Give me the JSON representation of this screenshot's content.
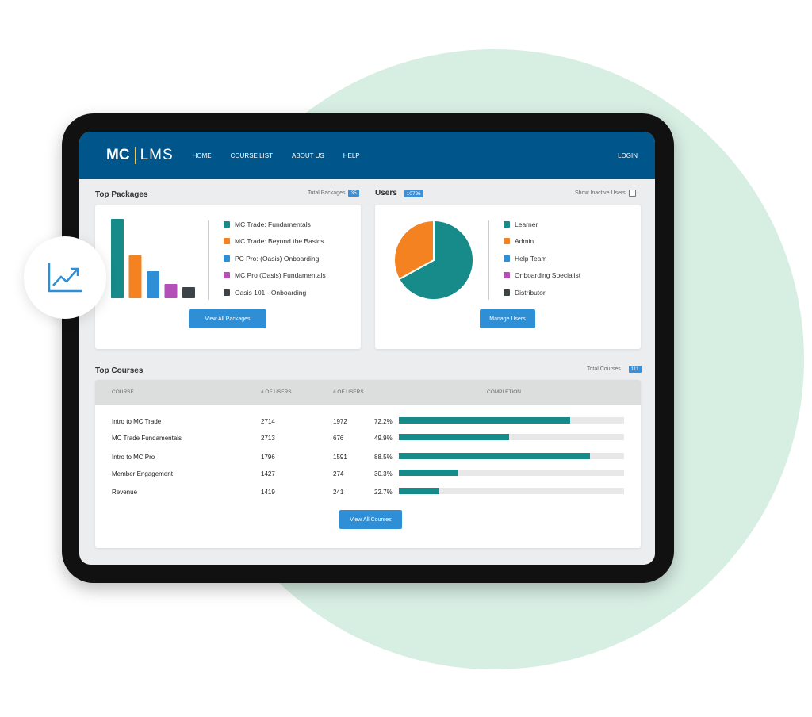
{
  "nav": {
    "logo_left": "MC",
    "logo_right": "LMS",
    "items": [
      "HOME",
      "COURSE LIST",
      "ABOUT US",
      "HELP"
    ],
    "login": "LOGIN"
  },
  "packages": {
    "title": "Top Packages",
    "total_label": "Total Packages",
    "total": "35",
    "button": "View All Packages",
    "chart_data": {
      "type": "bar",
      "categories": [
        "MC Trade: Fundamentals",
        "MC Trade: Beyond the Basics",
        "PC Pro: (Oasis) Onboarding",
        "MC Pro (Oasis) Fundamentals",
        "Oasis 101 - Onboarding"
      ],
      "values": [
        100,
        54,
        34,
        18,
        14
      ],
      "colors": [
        "#178a8a",
        "#f58220",
        "#2e8fd6",
        "#b44fb8",
        "#3d4448"
      ]
    }
  },
  "users": {
    "title": "Users",
    "count": "10726",
    "show_inactive": "Show Inactive Users",
    "show_inactive_checked": false,
    "button": "Manage Users",
    "chart_data": {
      "type": "pie",
      "categories": [
        "Learner",
        "Admin",
        "Help Team",
        "Onboarding Specialist",
        "Distributor"
      ],
      "values": [
        67,
        33,
        0,
        0,
        0
      ],
      "colors": [
        "#178a8a",
        "#f58220",
        "#2e8fd6",
        "#b44fb8",
        "#3d4448"
      ]
    }
  },
  "courses": {
    "title": "Top Courses",
    "total_label": "Total Courses",
    "total": "111",
    "columns": [
      "COURSE",
      "# OF USERS",
      "# OF USERS",
      "COMPLETION"
    ],
    "rows": [
      {
        "course": "Intro to MC Trade",
        "users": "2714",
        "users2": "1972",
        "completion": "72.2%",
        "pct": 76
      },
      {
        "course": "MC Trade Fundamentals",
        "users": "2713",
        "users2": "676",
        "completion": "49.9%",
        "pct": 49
      },
      {
        "course": "Intro to MC Pro",
        "users": "1796",
        "users2": "1591",
        "completion": "88.5%",
        "pct": 85
      },
      {
        "course": "Member Engagement",
        "users": "1427",
        "users2": "274",
        "completion": "30.3%",
        "pct": 26
      },
      {
        "course": "Revenue",
        "users": "1419",
        "users2": "241",
        "completion": "22.7%",
        "pct": 18
      }
    ],
    "button": "View All Courses"
  },
  "accent": "#00568a"
}
